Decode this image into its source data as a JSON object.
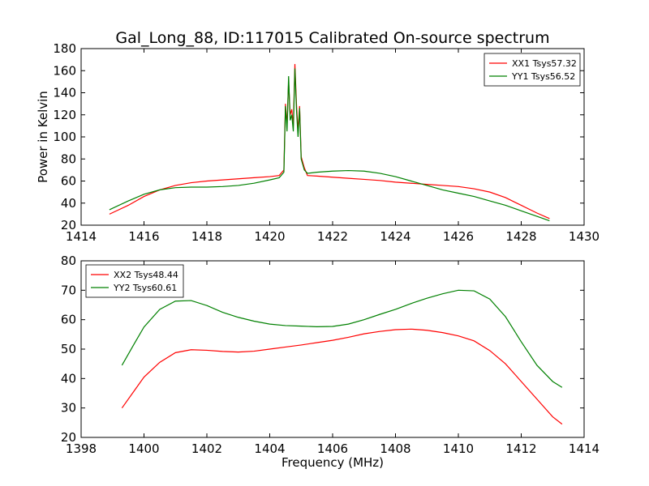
{
  "title": "Gal_Long_88, ID:117015 Calibrated On-source spectrum",
  "chart_data": [
    {
      "type": "line",
      "xlabel": "",
      "ylabel": "Power in Kelvin",
      "xlim": [
        1414,
        1430
      ],
      "ylim": [
        20,
        180
      ],
      "xticks": [
        "1414",
        "1416",
        "1418",
        "1420",
        "1422",
        "1424",
        "1426",
        "1428",
        "1430"
      ],
      "yticks": [
        "20",
        "40",
        "60",
        "80",
        "100",
        "120",
        "140",
        "160",
        "180"
      ],
      "grid": false,
      "legend": "top-right",
      "series": [
        {
          "name": "XX1 Tsys57.32",
          "color": "#ff0000",
          "x": [
            1414.9,
            1415.5,
            1416.0,
            1416.5,
            1417.0,
            1417.5,
            1418.0,
            1418.5,
            1419.0,
            1419.5,
            1420.0,
            1420.3,
            1420.45,
            1420.5,
            1420.55,
            1420.6,
            1420.65,
            1420.7,
            1420.75,
            1420.8,
            1420.85,
            1420.9,
            1420.95,
            1421.0,
            1421.1,
            1421.2,
            1421.5,
            1422.0,
            1422.5,
            1423.0,
            1423.5,
            1424.0,
            1424.5,
            1425.0,
            1425.5,
            1426.0,
            1426.5,
            1427.0,
            1427.5,
            1428.0,
            1428.5,
            1428.9
          ],
          "y": [
            30,
            38,
            46,
            52,
            56,
            58.5,
            60,
            61,
            62,
            63,
            64,
            65,
            70,
            130,
            110,
            150,
            120,
            125,
            110,
            166,
            130,
            105,
            128,
            82,
            72,
            65,
            64.5,
            63.5,
            62.5,
            61.5,
            60.5,
            59,
            58,
            57,
            56,
            55,
            53,
            50,
            45,
            38,
            31,
            26
          ]
        },
        {
          "name": "YY1 Tsys56.52",
          "color": "#008000",
          "x": [
            1414.9,
            1415.5,
            1416.0,
            1416.5,
            1417.0,
            1417.5,
            1418.0,
            1418.5,
            1419.0,
            1419.5,
            1420.0,
            1420.3,
            1420.45,
            1420.5,
            1420.55,
            1420.6,
            1420.65,
            1420.7,
            1420.75,
            1420.8,
            1420.85,
            1420.9,
            1420.95,
            1421.0,
            1421.1,
            1421.2,
            1421.5,
            1422.0,
            1422.5,
            1423.0,
            1423.5,
            1424.0,
            1424.5,
            1425.0,
            1425.5,
            1426.0,
            1426.5,
            1427.0,
            1427.5,
            1428.0,
            1428.5,
            1428.9
          ],
          "y": [
            34,
            42,
            48,
            52,
            54,
            54.5,
            54.5,
            55,
            56,
            58,
            61,
            63,
            68,
            128,
            105,
            155,
            115,
            120,
            105,
            162,
            125,
            100,
            126,
            80,
            70,
            67,
            68,
            69,
            69.5,
            69,
            67,
            64,
            60,
            56,
            52,
            49,
            46,
            42,
            38,
            33,
            28,
            24
          ]
        }
      ]
    },
    {
      "type": "line",
      "xlabel": "Frequency (MHz)",
      "ylabel": "",
      "xlim": [
        1398,
        1414
      ],
      "ylim": [
        20,
        80
      ],
      "xticks": [
        "1398",
        "1400",
        "1402",
        "1404",
        "1406",
        "1408",
        "1410",
        "1412",
        "1414"
      ],
      "yticks": [
        "20",
        "30",
        "40",
        "50",
        "60",
        "70",
        "80"
      ],
      "grid": false,
      "legend": "top-left",
      "series": [
        {
          "name": "XX2 Tsys48.44",
          "color": "#ff0000",
          "x": [
            1399.3,
            1399.7,
            1400.0,
            1400.5,
            1401.0,
            1401.5,
            1402.0,
            1402.5,
            1403.0,
            1403.5,
            1404.0,
            1404.5,
            1405.0,
            1405.5,
            1406.0,
            1406.5,
            1407.0,
            1407.5,
            1408.0,
            1408.5,
            1409.0,
            1409.5,
            1410.0,
            1410.5,
            1411.0,
            1411.5,
            1412.0,
            1412.5,
            1413.0,
            1413.3
          ],
          "y": [
            30,
            36,
            40.5,
            45.5,
            48.8,
            49.8,
            49.6,
            49.2,
            49.0,
            49.3,
            50.0,
            50.7,
            51.4,
            52.2,
            53.0,
            54.0,
            55.2,
            56.0,
            56.6,
            56.8,
            56.4,
            55.6,
            54.5,
            52.8,
            49.5,
            45.0,
            39.0,
            33.0,
            27.0,
            24.5
          ]
        },
        {
          "name": "YY2 Tsys60.61",
          "color": "#008000",
          "x": [
            1399.3,
            1399.7,
            1400.0,
            1400.5,
            1401.0,
            1401.5,
            1402.0,
            1402.5,
            1403.0,
            1403.5,
            1404.0,
            1404.5,
            1405.0,
            1405.5,
            1406.0,
            1406.5,
            1407.0,
            1407.5,
            1408.0,
            1408.5,
            1409.0,
            1409.5,
            1410.0,
            1410.5,
            1411.0,
            1411.5,
            1412.0,
            1412.5,
            1413.0,
            1413.3
          ],
          "y": [
            44.5,
            52,
            57.5,
            63.5,
            66.3,
            66.5,
            64.8,
            62.5,
            60.8,
            59.5,
            58.5,
            58.0,
            57.8,
            57.6,
            57.7,
            58.5,
            60.0,
            61.8,
            63.5,
            65.5,
            67.3,
            68.8,
            70.0,
            69.8,
            67.0,
            61.0,
            52.5,
            44.5,
            39.0,
            37.0
          ]
        }
      ]
    }
  ]
}
